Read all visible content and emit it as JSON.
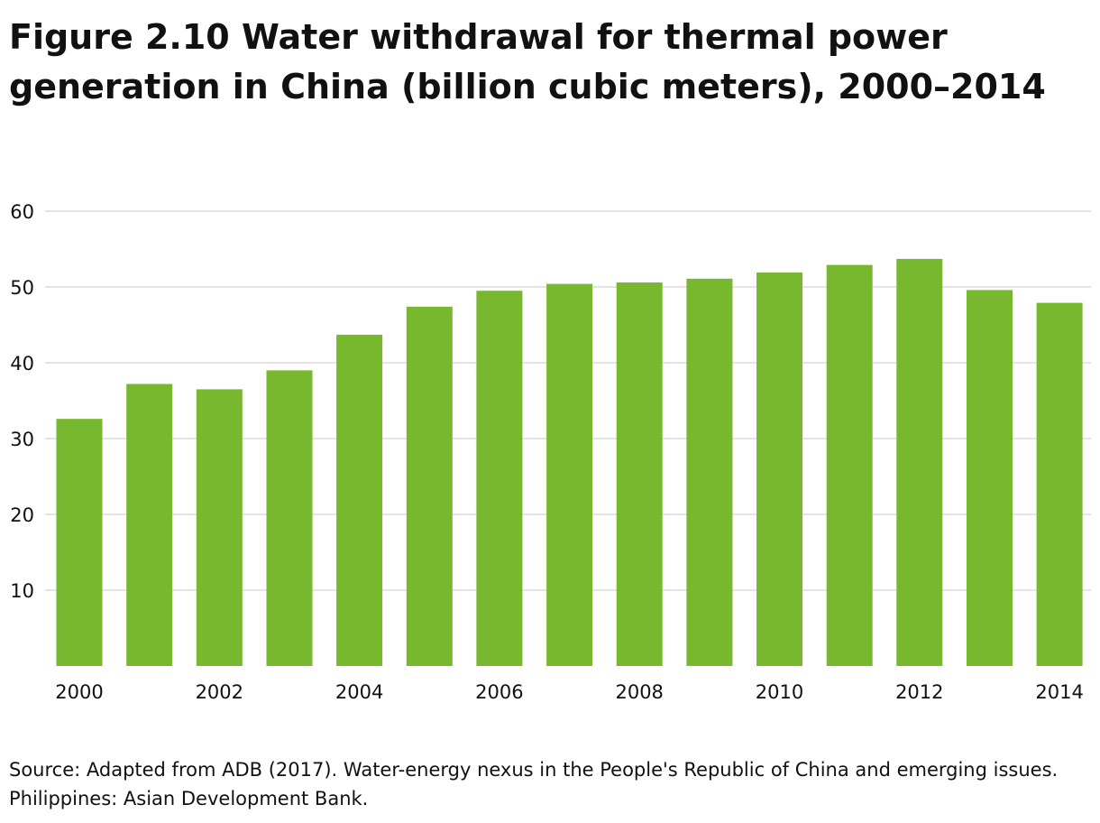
{
  "title": "Figure 2.10 Water withdrawal for thermal power generation in China (billion cubic meters), 2000–2014",
  "source": "Source: Adapted from ADB (2017). Water-energy nexus in the People's Republic of China and emerging issues. Philippines: Asian Development Bank.",
  "colors": {
    "bar": "#77b82e",
    "grid": "#dcdcdc",
    "text": "#111111"
  },
  "chart_data": {
    "type": "bar",
    "categories": [
      "2000",
      "2001",
      "2002",
      "2003",
      "2004",
      "2005",
      "2006",
      "2007",
      "2008",
      "2009",
      "2010",
      "2011",
      "2012",
      "2013",
      "2014"
    ],
    "values": [
      32.6,
      37.2,
      36.5,
      39.0,
      43.7,
      47.4,
      49.5,
      50.4,
      50.6,
      51.1,
      51.9,
      52.9,
      53.7,
      49.6,
      47.9
    ],
    "x_tick_labels": [
      "2000",
      "2002",
      "2004",
      "2006",
      "2008",
      "2010",
      "2012",
      "2014"
    ],
    "y_ticks": [
      10,
      20,
      30,
      40,
      50,
      60
    ],
    "ylim": [
      0,
      60
    ],
    "grid": true
  }
}
